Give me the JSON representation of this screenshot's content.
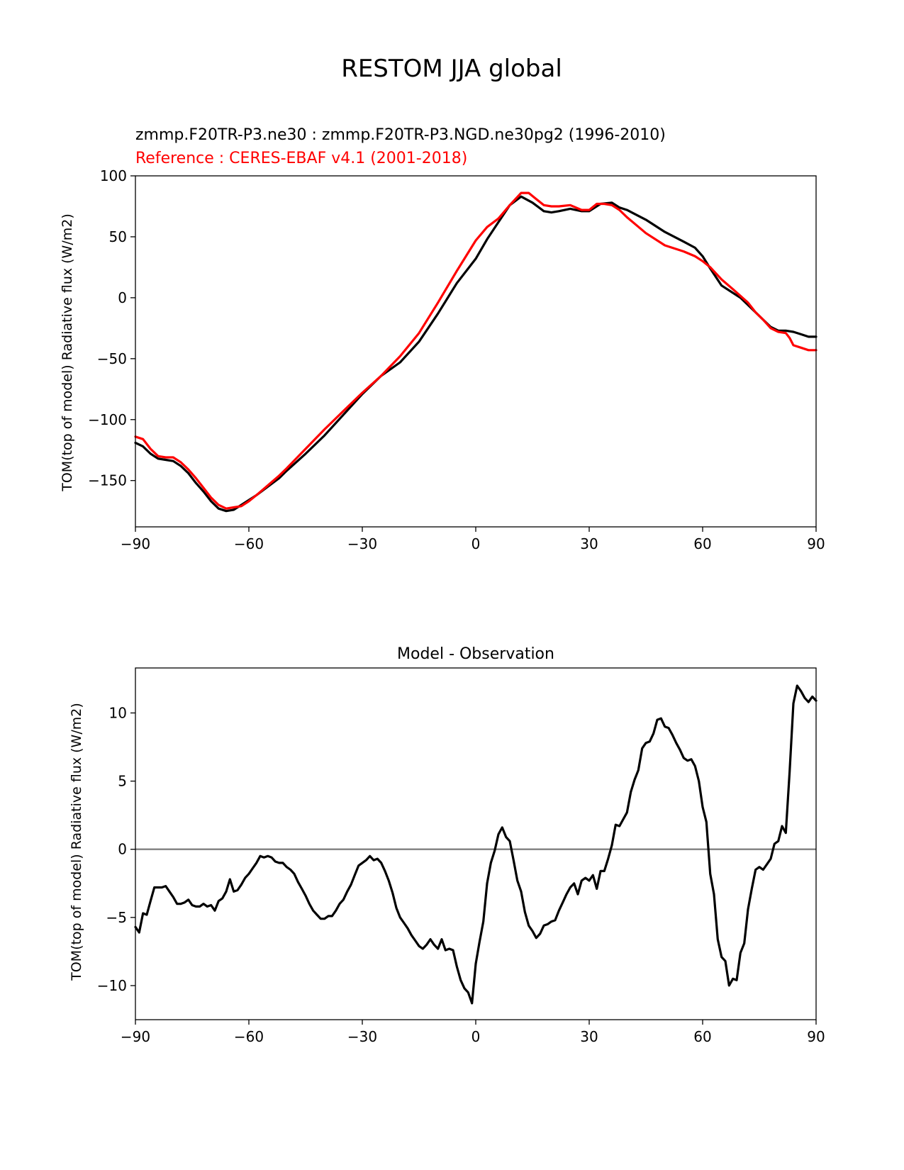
{
  "figure": {
    "suptitle": "RESTOM JJA global"
  },
  "chart_data": [
    {
      "type": "line",
      "subtitle_model": "zmmp.F20TR-P3.ne30 : zmmp.F20TR-P3.NGD.ne30pg2 (1996-2010)",
      "subtitle_reference": "Reference : CERES-EBAF v4.1 (2001-2018)",
      "title": "",
      "xlabel": "",
      "ylabel": "TOM(top of model) Radiative flux (W/m2)",
      "xlim": [
        -90,
        90
      ],
      "ylim": [
        -188,
        100
      ],
      "xticks": [
        -90,
        -60,
        -30,
        0,
        30,
        60,
        90
      ],
      "xtick_labels": [
        "−90",
        "−60",
        "−30",
        "0",
        "30",
        "60",
        "90"
      ],
      "yticks": [
        100,
        50,
        0,
        -50,
        -100,
        -150
      ],
      "ytick_labels": [
        "100",
        "50",
        "0",
        "−50",
        "−100",
        "−150"
      ],
      "colors": {
        "model": "#000000",
        "reference": "#ff0000"
      },
      "series": [
        {
          "key": "model",
          "x": [
            -90,
            -88,
            -86,
            -84,
            -82,
            -80,
            -78,
            -76,
            -74,
            -72,
            -70,
            -68,
            -66,
            -64,
            -62,
            -60,
            -58,
            -55,
            -52,
            -50,
            -45,
            -40,
            -35,
            -30,
            -25,
            -20,
            -15,
            -10,
            -5,
            0,
            3,
            6,
            9,
            12,
            15,
            18,
            20,
            22,
            25,
            28,
            30,
            33,
            36,
            38,
            40,
            45,
            50,
            55,
            58,
            60,
            62,
            65,
            70,
            74,
            76,
            78,
            80,
            82,
            84,
            86,
            88,
            90
          ],
          "values": [
            -119,
            -122,
            -128,
            -132,
            -133,
            -134,
            -138,
            -144,
            -152,
            -159,
            -167,
            -173,
            -175,
            -174,
            -170,
            -166,
            -162,
            -155,
            -148,
            -142,
            -128,
            -113,
            -96,
            -79,
            -64,
            -53,
            -36,
            -13,
            12,
            32,
            48,
            62,
            76,
            83,
            78,
            71,
            70,
            71,
            73,
            71,
            71,
            77,
            78,
            74,
            72,
            64,
            54,
            46,
            41,
            34,
            24,
            10,
            0,
            -12,
            -18,
            -24,
            -27,
            -27,
            -28,
            -30,
            -32,
            -32
          ]
        },
        {
          "key": "reference",
          "x": [
            -90,
            -88,
            -86,
            -84,
            -82,
            -80,
            -78,
            -76,
            -74,
            -72,
            -70,
            -68,
            -66,
            -64,
            -62,
            -60,
            -58,
            -55,
            -52,
            -50,
            -45,
            -40,
            -35,
            -30,
            -25,
            -20,
            -15,
            -10,
            -5,
            0,
            3,
            6,
            9,
            12,
            14,
            16,
            18,
            20,
            22,
            25,
            28,
            30,
            32,
            34,
            36,
            38,
            40,
            45,
            50,
            55,
            58,
            60,
            62,
            65,
            68,
            72,
            74,
            76,
            78,
            80,
            82,
            83,
            84,
            86,
            88,
            90
          ],
          "values": [
            -114,
            -116,
            -124,
            -130,
            -131,
            -131,
            -135,
            -141,
            -148,
            -156,
            -164,
            -170,
            -173,
            -172,
            -171,
            -167,
            -162,
            -154,
            -146,
            -140,
            -124,
            -108,
            -93,
            -78,
            -64,
            -48,
            -29,
            -4,
            22,
            47,
            58,
            65,
            76,
            86,
            86,
            81,
            76,
            75,
            75,
            76,
            72,
            72,
            77,
            77,
            76,
            72,
            66,
            53,
            43,
            38,
            34,
            30,
            25,
            15,
            7,
            -4,
            -12,
            -18,
            -25,
            -28,
            -29,
            -33,
            -39,
            -41,
            -43,
            -43
          ]
        }
      ]
    },
    {
      "type": "line",
      "title": "Model - Observation",
      "xlabel": "",
      "ylabel": "TOM(top of model) Radiative flux (W/m2)",
      "xlim": [
        -90,
        90
      ],
      "ylim": [
        -12.5,
        13.3
      ],
      "xticks": [
        -90,
        -60,
        -30,
        0,
        30,
        60,
        90
      ],
      "xtick_labels": [
        "−90",
        "−60",
        "−30",
        "0",
        "30",
        "60",
        "90"
      ],
      "yticks": [
        10,
        5,
        0,
        -5,
        -10
      ],
      "ytick_labels": [
        "10",
        "5",
        "0",
        "−5",
        "−10"
      ],
      "zero_line": 0,
      "colors": {
        "series": "#000000",
        "zero_line": "#808080"
      },
      "series": [
        {
          "x": [
            -90,
            -89,
            -88,
            -87,
            -86,
            -85,
            -84,
            -83,
            -82,
            -81,
            -80,
            -79,
            -78,
            -77,
            -76,
            -75,
            -74,
            -73,
            -72,
            -71,
            -70,
            -69,
            -68,
            -67,
            -66,
            -65,
            -64,
            -63,
            -62,
            -61,
            -60,
            -59,
            -58,
            -57,
            -56,
            -55,
            -54,
            -53,
            -52,
            -51,
            -50,
            -49,
            -48,
            -47,
            -46,
            -45,
            -44,
            -43,
            -42,
            -41,
            -40,
            -39,
            -38,
            -37,
            -36,
            -35,
            -34,
            -33,
            -32,
            -31,
            -30,
            -29,
            -28,
            -27,
            -26,
            -25,
            -24,
            -23,
            -22,
            -21,
            -20,
            -19,
            -18,
            -17,
            -16,
            -15,
            -14,
            -13,
            -12,
            -11,
            -10,
            -9,
            -8,
            -7,
            -6,
            -5,
            -4,
            -3,
            -2,
            -1,
            0,
            1,
            2,
            3,
            4,
            5,
            6,
            7,
            8,
            9,
            10,
            11,
            12,
            13,
            14,
            15,
            16,
            17,
            18,
            19,
            20,
            21,
            22,
            23,
            24,
            25,
            26,
            27,
            28,
            29,
            30,
            31,
            32,
            33,
            34,
            35,
            36,
            37,
            38,
            39,
            40,
            41,
            42,
            43,
            44,
            45,
            46,
            47,
            48,
            49,
            50,
            51,
            52,
            53,
            54,
            55,
            56,
            57,
            58,
            59,
            60,
            61,
            62,
            63,
            64,
            65,
            66,
            67,
            68,
            69,
            70,
            71,
            72,
            73,
            74,
            75,
            76,
            77,
            78,
            79,
            80,
            81,
            82,
            83,
            84,
            85,
            86,
            87,
            88,
            89,
            90
          ],
          "values": [
            -5.7,
            -6.1,
            -4.7,
            -4.8,
            -3.8,
            -2.8,
            -2.8,
            -2.8,
            -2.7,
            -3.1,
            -3.5,
            -4.0,
            -4.0,
            -3.9,
            -3.7,
            -4.1,
            -4.2,
            -4.2,
            -4.0,
            -4.2,
            -4.1,
            -4.5,
            -3.8,
            -3.6,
            -3.1,
            -2.2,
            -3.1,
            -3.0,
            -2.6,
            -2.1,
            -1.8,
            -1.4,
            -1.0,
            -0.5,
            -0.6,
            -0.5,
            -0.6,
            -0.9,
            -1.0,
            -1.0,
            -1.3,
            -1.5,
            -1.8,
            -2.4,
            -2.9,
            -3.4,
            -4.0,
            -4.5,
            -4.8,
            -5.1,
            -5.1,
            -4.9,
            -4.9,
            -4.5,
            -4.0,
            -3.7,
            -3.1,
            -2.6,
            -1.9,
            -1.2,
            -1.0,
            -0.8,
            -0.5,
            -0.8,
            -0.7,
            -1.0,
            -1.6,
            -2.3,
            -3.2,
            -4.3,
            -5.0,
            -5.4,
            -5.8,
            -6.3,
            -6.7,
            -7.1,
            -7.3,
            -7.0,
            -6.6,
            -7.0,
            -7.3,
            -6.6,
            -7.4,
            -7.3,
            -7.4,
            -8.6,
            -9.6,
            -10.2,
            -10.5,
            -11.3,
            -8.4,
            -6.8,
            -5.3,
            -2.5,
            -1.0,
            -0.1,
            1.1,
            1.6,
            0.9,
            0.6,
            -0.8,
            -2.3,
            -3.1,
            -4.6,
            -5.6,
            -6.0,
            -6.5,
            -6.2,
            -5.6,
            -5.5,
            -5.3,
            -5.2,
            -4.5,
            -3.9,
            -3.3,
            -2.8,
            -2.5,
            -3.3,
            -2.3,
            -2.1,
            -2.3,
            -1.9,
            -2.9,
            -1.6,
            -1.6,
            -0.7,
            0.3,
            1.8,
            1.7,
            2.2,
            2.7,
            4.2,
            5.1,
            5.8,
            7.4,
            7.8,
            7.9,
            8.5,
            9.5,
            9.6,
            9.0,
            8.9,
            8.4,
            7.8,
            7.3,
            6.7,
            6.5,
            6.6,
            6.1,
            5.0,
            3.1,
            2.0,
            -1.8,
            -3.3,
            -6.6,
            -7.9,
            -8.2,
            -10.0,
            -9.5,
            -9.6,
            -7.6,
            -6.9,
            -4.4,
            -2.9,
            -1.5,
            -1.3,
            -1.5,
            -1.1,
            -0.7,
            0.4,
            0.6,
            1.7,
            1.2,
            5.7,
            10.7,
            12.0,
            11.6,
            11.1,
            10.8,
            11.2,
            10.9
          ]
        }
      ]
    }
  ]
}
